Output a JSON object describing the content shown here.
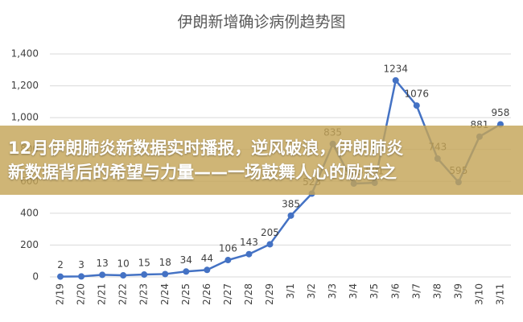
{
  "chart_data": {
    "type": "line",
    "title": "伊朗新增确诊病例趋势图",
    "categories": [
      "2/19",
      "2/20",
      "2/21",
      "2/22",
      "2/23",
      "2/24",
      "2/25",
      "2/26",
      "2/27",
      "2/28",
      "2/29",
      "3/1",
      "3/2",
      "3/3",
      "3/4",
      "3/5",
      "3/6",
      "3/7",
      "3/8",
      "3/9",
      "3/10",
      "3/11"
    ],
    "series": [
      {
        "name": "新增确诊",
        "color": "#4472c4",
        "values": [
          2,
          3,
          13,
          10,
          15,
          18,
          34,
          44,
          106,
          143,
          205,
          385,
          523,
          835,
          586,
          591,
          1234,
          1076,
          743,
          595,
          881,
          958
        ]
      }
    ],
    "ylim": [
      0,
      1400
    ],
    "yticks": [
      0,
      200,
      400,
      600,
      800,
      {
        "value": 1000,
        "label": "1,000"
      },
      {
        "value": 1200,
        "label": "1,200"
      },
      {
        "value": 1400,
        "label": "1,400"
      }
    ],
    "grid": true
  },
  "banner": {
    "lines": [
      "12月伊朗肺炎新数据实时播报，逆风破浪，伊朗肺炎",
      "新数据背后的希望与力量——一场鼓舞人心的励志之"
    ]
  }
}
